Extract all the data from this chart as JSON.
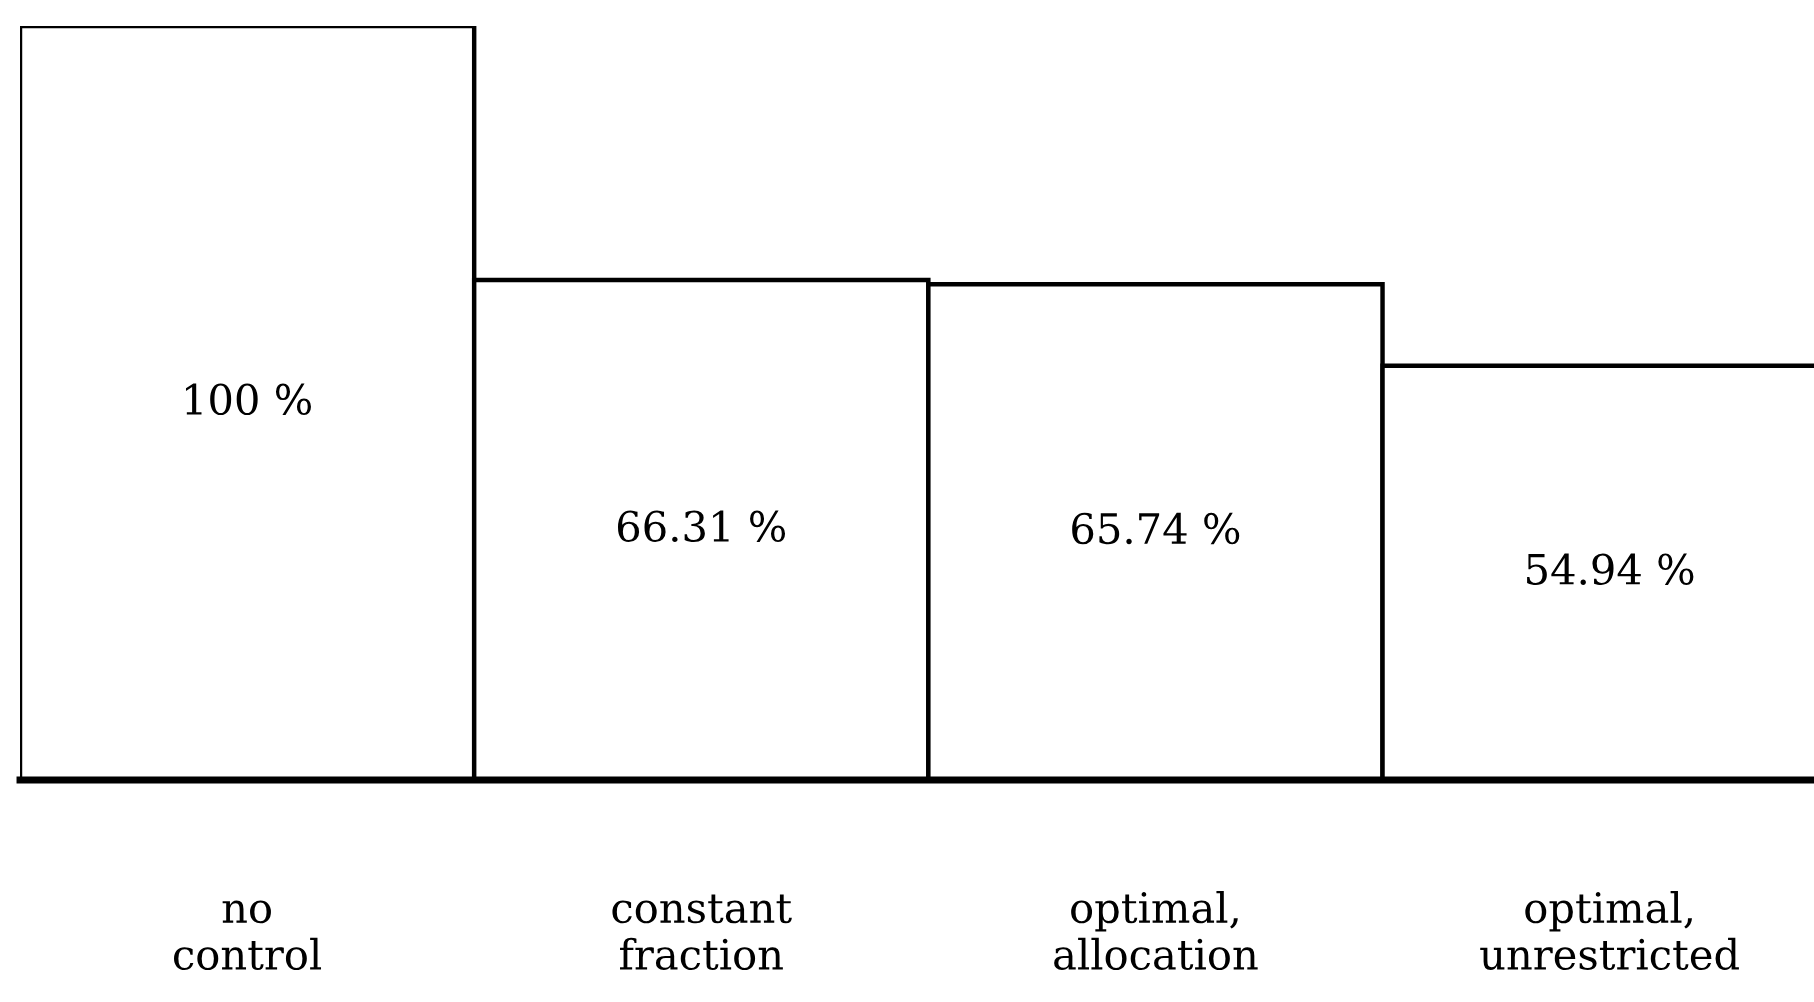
{
  "chart_data": {
    "type": "bar",
    "categories": [
      "no\ncontrol",
      "constant\nfraction",
      "optimal,\nallocation",
      "optimal,\nunrestricted"
    ],
    "values": [
      100,
      66.31,
      65.74,
      54.94
    ],
    "value_labels": [
      "100 %",
      "66.31 %",
      "65.74 %",
      "54.94 %"
    ],
    "color": "#ffffff",
    "tick_labels": "x"
  }
}
